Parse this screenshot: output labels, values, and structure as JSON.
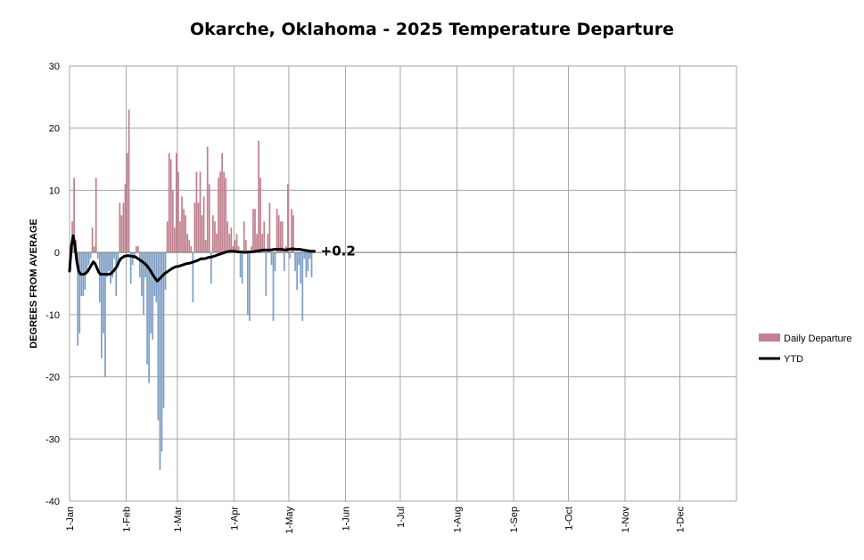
{
  "chart_data": {
    "type": "bar",
    "title": "Okarche, Oklahoma - 2025 Temperature Departure",
    "ylabel": "DEGREES FROM AVERAGE",
    "ylim": [
      -40,
      30
    ],
    "yticks": [
      -40,
      -30,
      -20,
      -10,
      0,
      10,
      20,
      30
    ],
    "xlim_days": [
      0,
      365
    ],
    "x_ticks": [
      "1-Jan",
      "1-Feb",
      "1-Mar",
      "1-Apr",
      "1-May",
      "1-Jun",
      "1-Jul",
      "1-Aug",
      "1-Sep",
      "1-Oct",
      "1-Nov",
      "1-Dec"
    ],
    "x_tick_days": [
      0,
      31,
      59,
      90,
      120,
      151,
      181,
      212,
      243,
      273,
      304,
      334
    ],
    "grid": true,
    "legend_position": "right",
    "series": [
      {
        "name": "Daily Departure",
        "kind": "bar",
        "positive_color": "#c0808f",
        "negative_color": "#7f9fc6",
        "values": [
          -3,
          5,
          12,
          2,
          -15,
          -13,
          -7,
          -7,
          -6,
          -3,
          -2,
          -1,
          4,
          1,
          12,
          -1,
          -8,
          -17,
          -13,
          -20,
          -4,
          -3,
          -5,
          -4,
          -1,
          -7,
          -2,
          8,
          6,
          8,
          11,
          16,
          23,
          -5,
          -2,
          -1,
          1,
          1,
          -4,
          -7,
          -10,
          -4,
          -18,
          -21,
          -13,
          -14,
          -7,
          -8,
          -27,
          -35,
          -32,
          -25,
          -6,
          5,
          16,
          15,
          10,
          4,
          16,
          13,
          5,
          9,
          7,
          6,
          3,
          2,
          1,
          -8,
          8,
          13,
          8,
          13,
          6,
          9,
          2,
          17,
          11,
          -5,
          6,
          5,
          3,
          12,
          13,
          16,
          13,
          12,
          5,
          3,
          4,
          1,
          2,
          3,
          1,
          -4,
          -5,
          5,
          2,
          -10,
          -11,
          1,
          7,
          7,
          3,
          18,
          12,
          3,
          5,
          -7,
          3,
          8,
          -2,
          -11,
          -3,
          7,
          6,
          5,
          5,
          -3,
          1,
          11,
          -1,
          7,
          6,
          -3,
          -6,
          -2,
          -5,
          -11,
          -1,
          -4,
          -3,
          -1,
          -4
        ]
      },
      {
        "name": "YTD",
        "kind": "line",
        "color": "#000000",
        "x": [
          0,
          1,
          2,
          3,
          4,
          5,
          6,
          7,
          8,
          9,
          10,
          11,
          12,
          13,
          14,
          15,
          16,
          17,
          18,
          19,
          20,
          21,
          22,
          23,
          24,
          25,
          26,
          27,
          28,
          30,
          32,
          34,
          36,
          38,
          40,
          42,
          44,
          46,
          48,
          50,
          52,
          54,
          56,
          58,
          60,
          62,
          64,
          66,
          68,
          70,
          72,
          74,
          76,
          78,
          80,
          82,
          84,
          86,
          88,
          90,
          92,
          94,
          96,
          98,
          100,
          102,
          104,
          106,
          108,
          110,
          112,
          114,
          116,
          118,
          120,
          122,
          124,
          126,
          128,
          130,
          132,
          134
        ],
        "values": [
          -3,
          1,
          2.7,
          1,
          -1.5,
          -3,
          -3.5,
          -3.5,
          -3.5,
          -3.3,
          -3,
          -2.5,
          -2,
          -1.5,
          -1.8,
          -2.5,
          -3.2,
          -3.5,
          -3.5,
          -3.5,
          -3.5,
          -3.5,
          -3.5,
          -3.3,
          -3,
          -2.6,
          -2.2,
          -1.5,
          -1,
          -0.6,
          -0.5,
          -0.6,
          -0.7,
          -1.1,
          -1.5,
          -2.0,
          -2.8,
          -3.8,
          -4.6,
          -4.0,
          -3.4,
          -3.0,
          -2.6,
          -2.3,
          -2.2,
          -2.0,
          -1.8,
          -1.7,
          -1.5,
          -1.3,
          -1.0,
          -1.0,
          -0.8,
          -0.7,
          -0.5,
          -0.3,
          -0.1,
          0.1,
          0.2,
          0.2,
          0.1,
          0.1,
          0.0,
          0.1,
          0.1,
          0.2,
          0.3,
          0.4,
          0.4,
          0.4,
          0.5,
          0.5,
          0.5,
          0.4,
          0.5,
          0.6,
          0.5,
          0.5,
          0.4,
          0.3,
          0.2,
          0.2
        ]
      }
    ],
    "annotations": [
      {
        "text": "+0.2",
        "x_day": 135,
        "y": 0.2
      }
    ]
  },
  "colors": {
    "grid": "#a6a6a6",
    "axis": "#808080"
  }
}
